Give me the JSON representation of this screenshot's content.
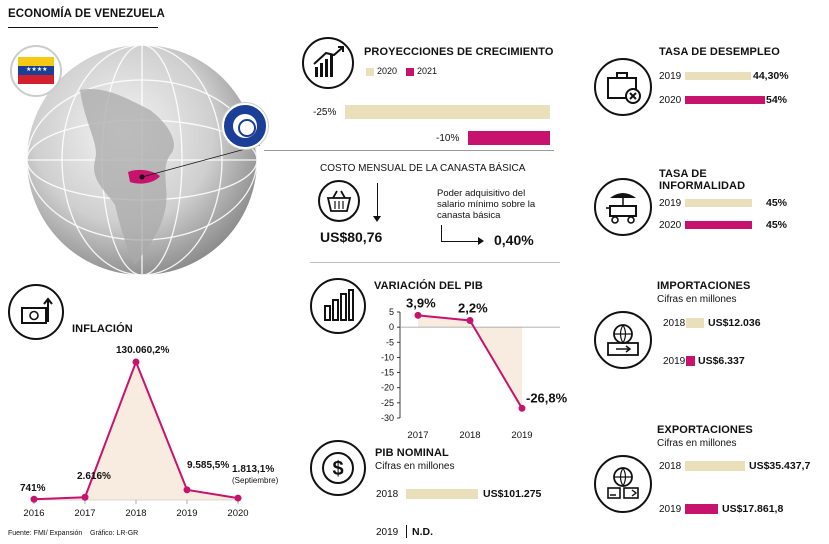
{
  "title": "ECONOMÍA DE VENEZUELA",
  "colors": {
    "beige": "#eadfbb",
    "magenta": "#c7136d",
    "dark": "#111111"
  },
  "icons": {
    "flag": "venezuela-flag-icon",
    "imf": "imf-seal-icon",
    "growth": "bar-chart-growth-icon",
    "basket": "shopping-basket-icon",
    "unemployment": "briefcase-x-icon",
    "informality": "street-cart-icon",
    "imports": "import-globe-icon",
    "exports": "export-globe-icon",
    "pib": "dollar-icon",
    "inflation": "money-up-icon",
    "pib_var": "bar-chart-icon"
  },
  "proyecciones": {
    "title": "PROYECCIONES DE CRECIMIENTO",
    "legend_2020": "2020",
    "legend_2021": "2021",
    "v2020_label": "-25%",
    "v2021_label": "-10%"
  },
  "canasta": {
    "title": "COSTO MENSUAL DE LA CANASTA BÁSICA",
    "value": "US$80,76",
    "poder_label": "Poder adquisitivo del salario mínimo sobre la canasta básica",
    "poder_value": "0,40%"
  },
  "desempleo": {
    "title": "TASA DE DESEMPLEO",
    "rows": [
      {
        "year": "2019",
        "value": "44,30%"
      },
      {
        "year": "2020",
        "value": "54%"
      }
    ]
  },
  "informalidad": {
    "title": "TASA DE INFORMALIDAD",
    "rows": [
      {
        "year": "2019",
        "value": "45%"
      },
      {
        "year": "2020",
        "value": "45%"
      }
    ]
  },
  "importaciones": {
    "title": "IMPORTACIONES",
    "subtitle": "Cifras en millones",
    "rows": [
      {
        "year": "2018",
        "value": "US$12.036"
      },
      {
        "year": "2019",
        "value": "US$6.337"
      }
    ]
  },
  "exportaciones": {
    "title": "EXPORTACIONES",
    "subtitle": "Cifras en millones",
    "rows": [
      {
        "year": "2018",
        "value": "US$35.437,7"
      },
      {
        "year": "2019",
        "value": "US$17.861,8"
      }
    ]
  },
  "pib_nominal": {
    "title": "PIB NOMINAL",
    "subtitle": "Cifras en millones",
    "rows": [
      {
        "year": "2018",
        "value": "US$101.275"
      },
      {
        "year": "2019",
        "value": "N.D."
      }
    ]
  },
  "footer": {
    "source": "Fuente: FMI/ Expansión",
    "graphic": "Gráfico: LR-GR"
  },
  "chart_data": [
    {
      "type": "bar",
      "title": "PROYECCIONES DE CRECIMIENTO",
      "categories": [
        "2020",
        "2021"
      ],
      "values": [
        -25,
        -10
      ],
      "unit": "%"
    },
    {
      "type": "line",
      "title": "VARIACIÓN DEL PIB",
      "x": [
        "2017",
        "2018",
        "2019"
      ],
      "values": [
        3.9,
        2.2,
        -26.8
      ],
      "labels": [
        "3,9%",
        "2,2%",
        "-26,8%"
      ],
      "ylim": [
        -30,
        5
      ],
      "yticks": [
        5,
        0,
        -5,
        -10,
        -15,
        -20,
        -25,
        -30
      ],
      "ytick_labels": [
        "5",
        "0",
        "-5",
        "-10",
        "-15",
        "-20",
        "-25",
        "-30"
      ]
    },
    {
      "type": "line",
      "title": "INFLACIÓN",
      "x": [
        "2016",
        "2017",
        "2018",
        "2019",
        "2020"
      ],
      "values": [
        741,
        2616,
        130060.2,
        9585.5,
        1813.1
      ],
      "labels": [
        "741%",
        "2.616%",
        "130.060,2%",
        "9.585,5%",
        "1.813,1%"
      ],
      "note_2020": "(Septiembre)"
    },
    {
      "type": "bar",
      "title": "TASA DE DESEMPLEO",
      "categories": [
        "2019",
        "2020"
      ],
      "values": [
        44.3,
        54
      ],
      "unit": "%"
    },
    {
      "type": "bar",
      "title": "TASA DE INFORMALIDAD",
      "categories": [
        "2019",
        "2020"
      ],
      "values": [
        45,
        45
      ],
      "unit": "%"
    },
    {
      "type": "bar",
      "title": "IMPORTACIONES",
      "categories": [
        "2018",
        "2019"
      ],
      "values": [
        12036,
        6337
      ],
      "unit": "US$ millones"
    },
    {
      "type": "bar",
      "title": "EXPORTACIONES",
      "categories": [
        "2018",
        "2019"
      ],
      "values": [
        35437.7,
        17861.8
      ],
      "unit": "US$ millones"
    },
    {
      "type": "bar",
      "title": "PIB NOMINAL",
      "categories": [
        "2018",
        "2019"
      ],
      "values": [
        101275,
        null
      ],
      "unit": "US$ millones"
    }
  ]
}
